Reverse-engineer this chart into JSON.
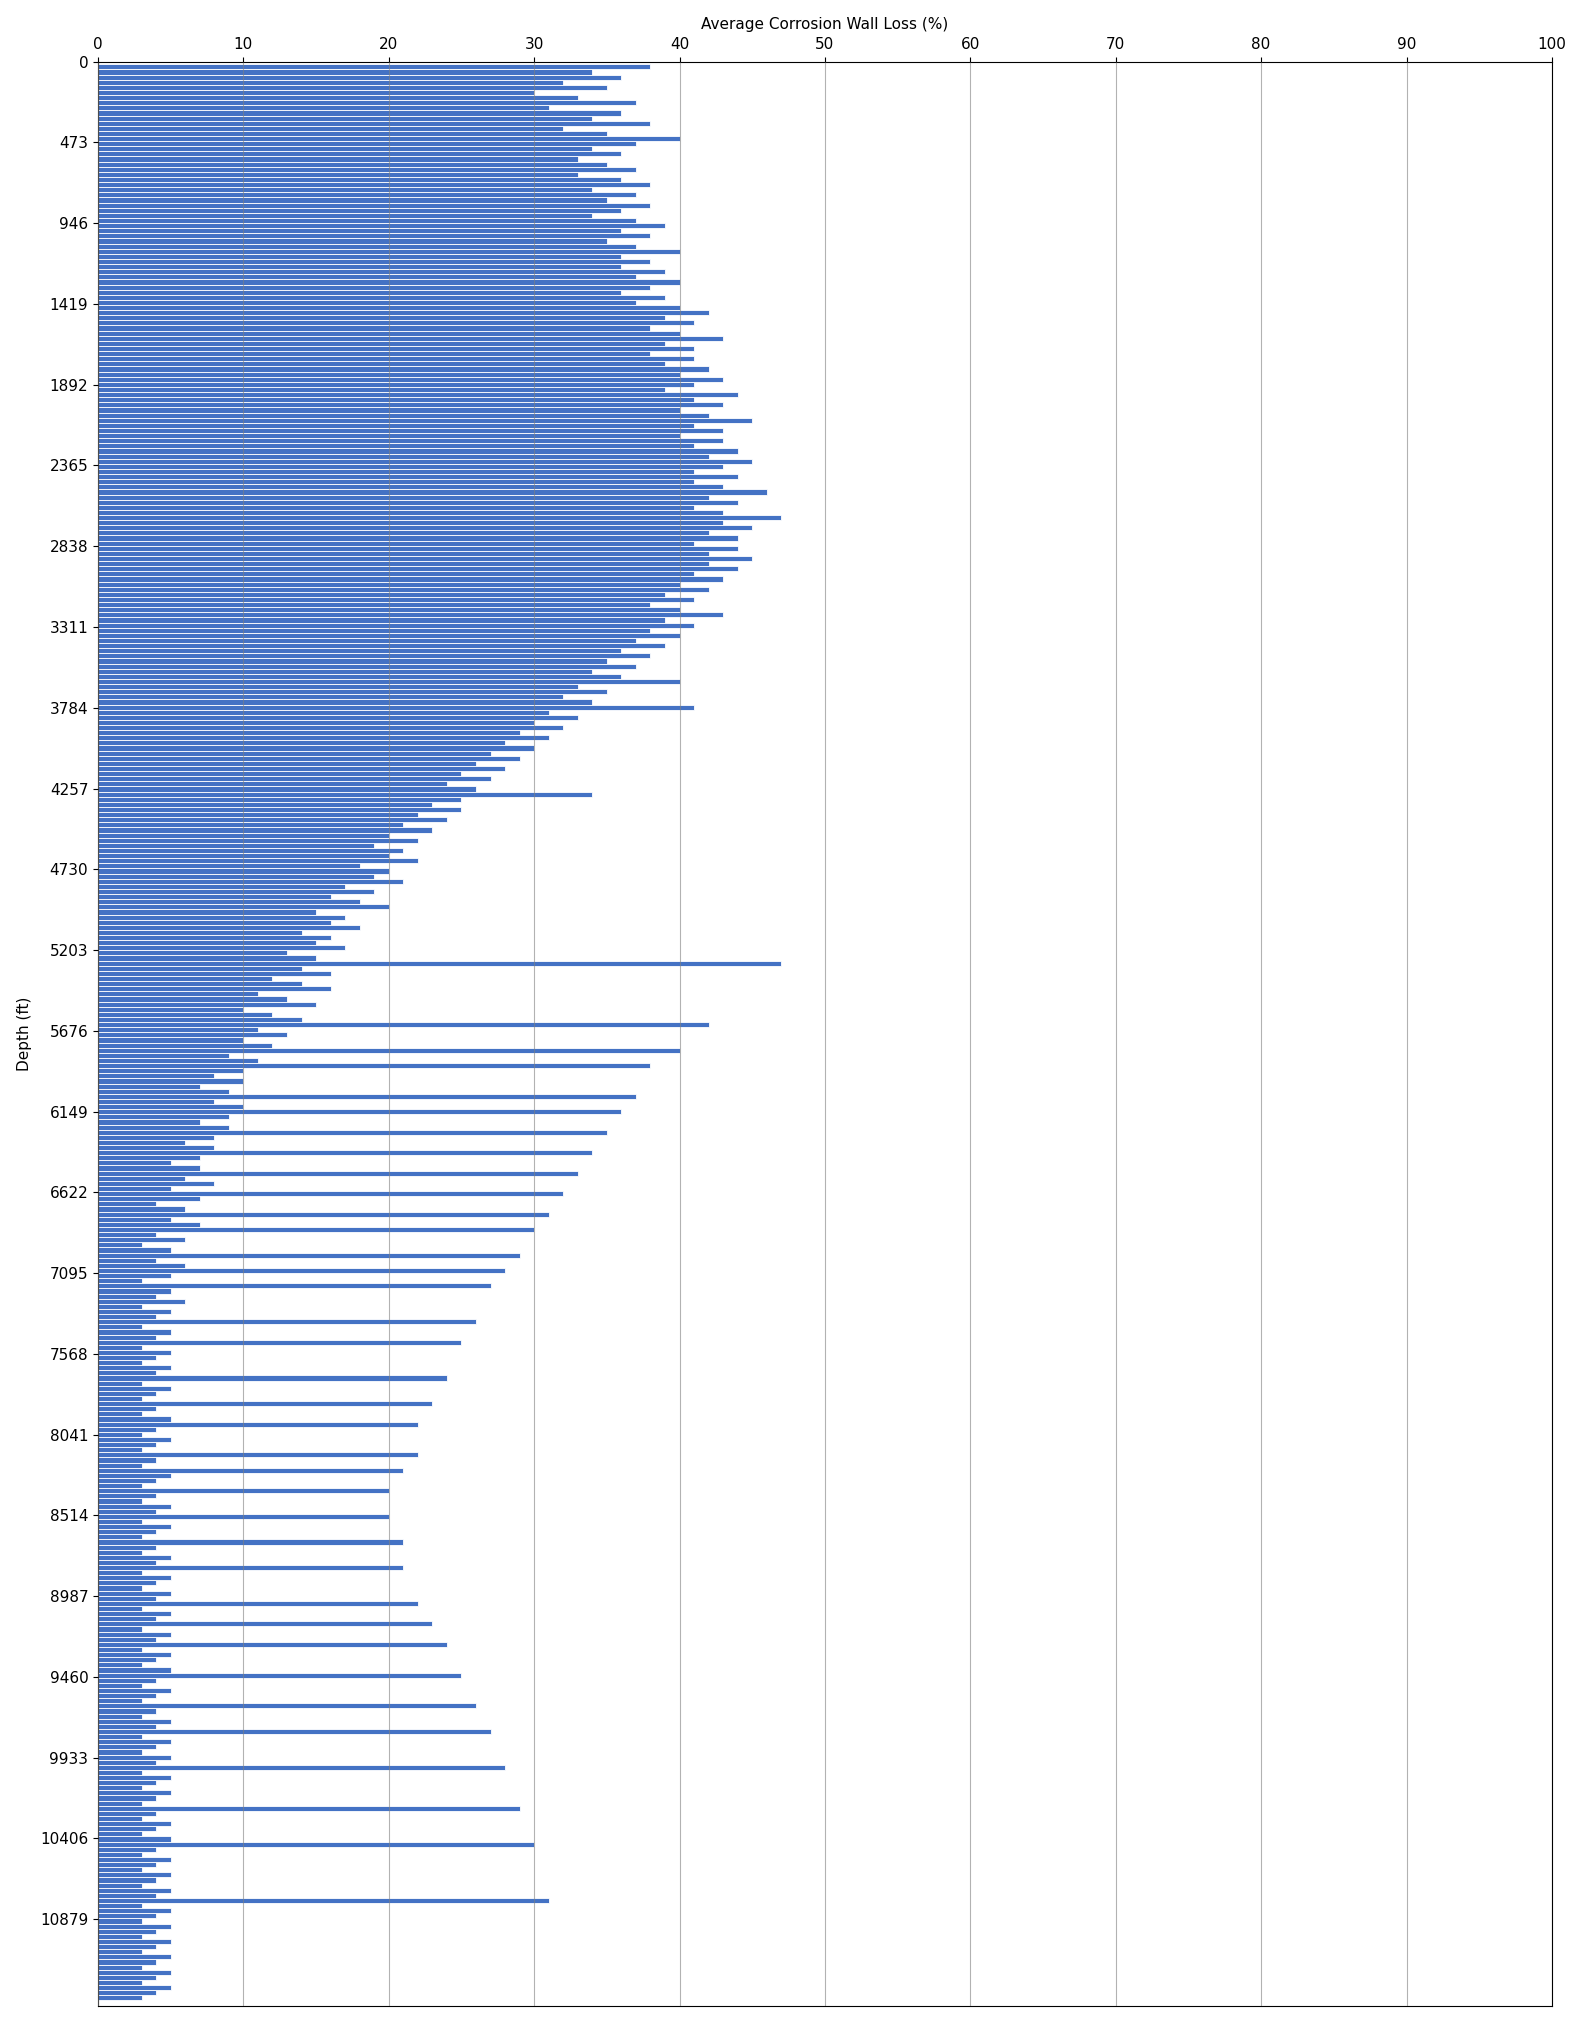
{
  "title": "Average Corrosion Wall Loss (%)",
  "xlabel": "Average Corrosion Wall Loss (%)",
  "ylabel": "Depth (ft)",
  "bar_color": "#4472C4",
  "bar_edge_color": "white",
  "background_color": "white",
  "xlim": [
    0,
    100
  ],
  "ylim_max": 11340,
  "ytick_interval": 473,
  "xtick_values": [
    0,
    10,
    20,
    30,
    40,
    50,
    60,
    70,
    80,
    90,
    100
  ],
  "depths": [
    30,
    60,
    90,
    120,
    150,
    180,
    210,
    240,
    270,
    300,
    330,
    360,
    390,
    420,
    450,
    480,
    510,
    540,
    570,
    600,
    630,
    660,
    690,
    720,
    750,
    780,
    810,
    840,
    870,
    900,
    930,
    960,
    990,
    1020,
    1050,
    1080,
    1110,
    1140,
    1170,
    1200,
    1230,
    1260,
    1290,
    1320,
    1350,
    1380,
    1410,
    1440,
    1470,
    1500,
    1530,
    1560,
    1590,
    1620,
    1650,
    1680,
    1710,
    1740,
    1770,
    1800,
    1830,
    1860,
    1890,
    1920,
    1950,
    1980,
    2010,
    2040,
    2070,
    2100,
    2130,
    2160,
    2190,
    2220,
    2250,
    2280,
    2310,
    2340,
    2370,
    2400,
    2430,
    2460,
    2490,
    2520,
    2550,
    2580,
    2610,
    2640,
    2670,
    2700,
    2730,
    2760,
    2790,
    2820,
    2850,
    2880,
    2910,
    2940,
    2970,
    3000,
    3030,
    3060,
    3090,
    3120,
    3150,
    3180,
    3210,
    3240,
    3270,
    3300,
    3330,
    3360,
    3390,
    3420,
    3450,
    3480,
    3510,
    3540,
    3570,
    3600,
    3630,
    3660,
    3690,
    3720,
    3750,
    3780,
    3810,
    3840,
    3870,
    3900,
    3930,
    3960,
    3990,
    4020,
    4050,
    4080,
    4110,
    4140,
    4170,
    4200,
    4230,
    4260,
    4290,
    4320,
    4350,
    4380,
    4410,
    4440,
    4470,
    4500,
    4530,
    4560,
    4590,
    4620,
    4650,
    4680,
    4710,
    4740,
    4770,
    4800,
    4830,
    4860,
    4890,
    4920,
    4950,
    4980,
    5010,
    5040,
    5070,
    5100,
    5130,
    5160,
    5190,
    5220,
    5250,
    5280,
    5310,
    5340,
    5370,
    5400,
    5430,
    5460,
    5490,
    5520,
    5550,
    5580,
    5610,
    5640,
    5670,
    5700,
    5730,
    5760,
    5790,
    5820,
    5850,
    5880,
    5910,
    5940,
    5970,
    6000,
    6030,
    6060,
    6090,
    6120,
    6150,
    6180,
    6210,
    6240,
    6270,
    6300,
    6330,
    6360,
    6390,
    6420,
    6450,
    6480,
    6510,
    6540,
    6570,
    6600,
    6630,
    6660,
    6690,
    6720,
    6750,
    6780,
    6810,
    6840,
    6870,
    6900,
    6930,
    6960,
    6990,
    7020,
    7050,
    7080,
    7110,
    7140,
    7170,
    7200,
    7230,
    7260,
    7290,
    7320,
    7350,
    7380,
    7410,
    7440,
    7470,
    7500,
    7530,
    7560,
    7590,
    7620,
    7650,
    7680,
    7710,
    7740,
    7770,
    7800,
    7830,
    7860,
    7890,
    7920,
    7950,
    7980,
    8010,
    8040,
    8070,
    8100,
    8130,
    8160,
    8190,
    8220,
    8250,
    8280,
    8310,
    8340,
    8370,
    8400,
    8430,
    8460,
    8490,
    8520,
    8550,
    8580,
    8610,
    8640,
    8670,
    8700,
    8730,
    8760,
    8790,
    8820,
    8850,
    8880,
    8910,
    8940,
    8970,
    9000,
    9030,
    9060,
    9090,
    9120,
    9150,
    9180,
    9210,
    9240,
    9270,
    9300,
    9330,
    9360,
    9390,
    9420,
    9450,
    9480,
    9510,
    9540,
    9570,
    9600,
    9630,
    9660,
    9690,
    9720,
    9750,
    9780,
    9810,
    9840,
    9870,
    9900,
    9930,
    9960,
    9990,
    10020,
    10050,
    10080,
    10110,
    10140,
    10170,
    10200,
    10230,
    10260,
    10290,
    10320,
    10350,
    10380,
    10410,
    10440,
    10470,
    10500,
    10530,
    10560,
    10590,
    10620,
    10650,
    10680,
    10710,
    10740,
    10770,
    10800,
    10830,
    10860,
    10890,
    10920,
    10950,
    10980,
    11010,
    11040,
    11070,
    11100,
    11130,
    11160,
    11190,
    11220,
    11250,
    11280,
    11310,
    11340
  ],
  "values": [
    38,
    34,
    36,
    32,
    35,
    30,
    33,
    37,
    31,
    36,
    34,
    38,
    32,
    35,
    40,
    37,
    34,
    36,
    33,
    35,
    37,
    33,
    36,
    38,
    34,
    37,
    35,
    38,
    36,
    34,
    37,
    39,
    36,
    38,
    35,
    37,
    40,
    36,
    38,
    36,
    39,
    37,
    40,
    38,
    36,
    39,
    37,
    40,
    42,
    39,
    41,
    38,
    40,
    43,
    39,
    41,
    38,
    41,
    39,
    42,
    40,
    43,
    41,
    39,
    44,
    41,
    43,
    40,
    42,
    45,
    41,
    43,
    40,
    43,
    41,
    44,
    42,
    45,
    43,
    41,
    44,
    41,
    43,
    46,
    42,
    44,
    41,
    43,
    47,
    43,
    45,
    42,
    44,
    41,
    44,
    42,
    45,
    42,
    44,
    41,
    43,
    40,
    42,
    39,
    41,
    38,
    40,
    43,
    39,
    41,
    38,
    40,
    37,
    39,
    36,
    38,
    35,
    37,
    34,
    36,
    40,
    33,
    35,
    32,
    34,
    41,
    31,
    33,
    30,
    32,
    29,
    31,
    28,
    30,
    27,
    29,
    26,
    28,
    25,
    27,
    24,
    26,
    34,
    25,
    23,
    25,
    22,
    24,
    21,
    23,
    20,
    22,
    19,
    21,
    20,
    22,
    18,
    20,
    19,
    21,
    17,
    19,
    16,
    18,
    20,
    15,
    17,
    16,
    18,
    14,
    16,
    15,
    17,
    13,
    15,
    47,
    14,
    16,
    12,
    14,
    16,
    11,
    13,
    15,
    10,
    12,
    14,
    42,
    11,
    13,
    10,
    12,
    40,
    9,
    11,
    38,
    10,
    8,
    10,
    7,
    9,
    37,
    8,
    10,
    36,
    9,
    7,
    9,
    35,
    8,
    6,
    8,
    34,
    7,
    5,
    7,
    33,
    6,
    8,
    5,
    32,
    7,
    4,
    6,
    31,
    5,
    7,
    30,
    4,
    6,
    3,
    5,
    29,
    4,
    6,
    28,
    5,
    3,
    27,
    5,
    4,
    6,
    3,
    5,
    4,
    26,
    3,
    5,
    4,
    25,
    3,
    5,
    4,
    3,
    5,
    4,
    24,
    3,
    5,
    4,
    3,
    23,
    4,
    3,
    5,
    22,
    4,
    3,
    5,
    4,
    3,
    22,
    4,
    3,
    21,
    5,
    4,
    3,
    20,
    4,
    3,
    5,
    4,
    20,
    3,
    5,
    4,
    3,
    21,
    4,
    3,
    5,
    4,
    21,
    3,
    5,
    4,
    3,
    5,
    4,
    22,
    3,
    5,
    4,
    23,
    3,
    5,
    4,
    24,
    3,
    5,
    4,
    3,
    5,
    25,
    4,
    3,
    5,
    4,
    3,
    26,
    4,
    3,
    5,
    4,
    27,
    3,
    5,
    4,
    3,
    5,
    4,
    28,
    3,
    5,
    4,
    3,
    5,
    4,
    3,
    29,
    4,
    3,
    5,
    4,
    3,
    5,
    30,
    4,
    3,
    5,
    4,
    3,
    5,
    4,
    3,
    5,
    4,
    31,
    3,
    5,
    4,
    3,
    5,
    4,
    3,
    5,
    4,
    3,
    5,
    4,
    3,
    5,
    4,
    3,
    5,
    4,
    3
  ]
}
